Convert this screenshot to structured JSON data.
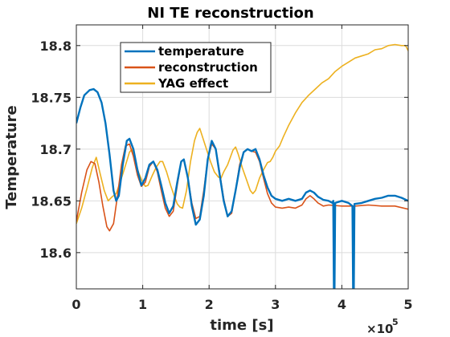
{
  "chart_data": {
    "type": "line",
    "title": "NI TE reconstruction",
    "xlabel": "time [s]",
    "ylabel": "Temperature",
    "x_multiplier": {
      "base": "×10",
      "exponent": "5"
    },
    "xlim": [
      0,
      500000
    ],
    "ylim": [
      18.565,
      18.82
    ],
    "x_ticks": [
      0,
      100000,
      200000,
      300000,
      400000,
      500000
    ],
    "x_tick_labels": [
      "0",
      "1",
      "2",
      "3",
      "4",
      "5"
    ],
    "y_ticks": [
      18.6,
      18.65,
      18.7,
      18.75,
      18.8
    ],
    "y_tick_labels": [
      "18.6",
      "18.65",
      "18.7",
      "18.75",
      "18.8"
    ],
    "grid": true,
    "legend_position": "top-left",
    "series": [
      {
        "name": "temperature",
        "color": "#0072BD",
        "points": [
          [
            0,
            18.725
          ],
          [
            6000,
            18.74
          ],
          [
            12000,
            18.752
          ],
          [
            20000,
            18.757
          ],
          [
            26000,
            18.758
          ],
          [
            32000,
            18.755
          ],
          [
            38000,
            18.745
          ],
          [
            44000,
            18.725
          ],
          [
            50000,
            18.695
          ],
          [
            56000,
            18.66
          ],
          [
            60000,
            18.65
          ],
          [
            64000,
            18.655
          ],
          [
            70000,
            18.685
          ],
          [
            76000,
            18.708
          ],
          [
            80000,
            18.71
          ],
          [
            86000,
            18.7
          ],
          [
            92000,
            18.68
          ],
          [
            98000,
            18.665
          ],
          [
            104000,
            18.672
          ],
          [
            110000,
            18.685
          ],
          [
            116000,
            18.688
          ],
          [
            122000,
            18.68
          ],
          [
            128000,
            18.665
          ],
          [
            134000,
            18.648
          ],
          [
            140000,
            18.638
          ],
          [
            146000,
            18.645
          ],
          [
            152000,
            18.668
          ],
          [
            158000,
            18.688
          ],
          [
            162000,
            18.69
          ],
          [
            168000,
            18.672
          ],
          [
            174000,
            18.645
          ],
          [
            180000,
            18.627
          ],
          [
            186000,
            18.632
          ],
          [
            192000,
            18.655
          ],
          [
            198000,
            18.69
          ],
          [
            204000,
            18.708
          ],
          [
            210000,
            18.7
          ],
          [
            216000,
            18.675
          ],
          [
            222000,
            18.65
          ],
          [
            228000,
            18.635
          ],
          [
            234000,
            18.64
          ],
          [
            240000,
            18.66
          ],
          [
            246000,
            18.682
          ],
          [
            252000,
            18.697
          ],
          [
            258000,
            18.7
          ],
          [
            264000,
            18.698
          ],
          [
            270000,
            18.7
          ],
          [
            276000,
            18.69
          ],
          [
            282000,
            18.675
          ],
          [
            288000,
            18.663
          ],
          [
            294000,
            18.655
          ],
          [
            300000,
            18.652
          ],
          [
            310000,
            18.65
          ],
          [
            320000,
            18.652
          ],
          [
            330000,
            18.65
          ],
          [
            340000,
            18.652
          ],
          [
            346000,
            18.658
          ],
          [
            352000,
            18.66
          ],
          [
            358000,
            18.658
          ],
          [
            364000,
            18.654
          ],
          [
            372000,
            18.651
          ],
          [
            380000,
            18.65
          ],
          [
            386000,
            18.648
          ],
          [
            387000,
            18.65
          ],
          [
            388000,
            18.565
          ],
          [
            389000,
            18.565
          ],
          [
            390000,
            18.648
          ],
          [
            400000,
            18.65
          ],
          [
            410000,
            18.648
          ],
          [
            416000,
            18.645
          ],
          [
            417000,
            18.565
          ],
          [
            418000,
            18.565
          ],
          [
            419000,
            18.647
          ],
          [
            430000,
            18.648
          ],
          [
            440000,
            18.65
          ],
          [
            450000,
            18.652
          ],
          [
            460000,
            18.653
          ],
          [
            470000,
            18.655
          ],
          [
            480000,
            18.655
          ],
          [
            490000,
            18.653
          ],
          [
            500000,
            18.65
          ]
        ]
      },
      {
        "name": "reconstruction",
        "color": "#D95319",
        "points": [
          [
            0,
            18.63
          ],
          [
            8000,
            18.658
          ],
          [
            16000,
            18.68
          ],
          [
            22000,
            18.688
          ],
          [
            28000,
            18.686
          ],
          [
            34000,
            18.668
          ],
          [
            40000,
            18.645
          ],
          [
            46000,
            18.625
          ],
          [
            50000,
            18.621
          ],
          [
            56000,
            18.628
          ],
          [
            62000,
            18.655
          ],
          [
            68000,
            18.685
          ],
          [
            74000,
            18.703
          ],
          [
            80000,
            18.705
          ],
          [
            86000,
            18.693
          ],
          [
            92000,
            18.675
          ],
          [
            98000,
            18.664
          ],
          [
            104000,
            18.668
          ],
          [
            110000,
            18.683
          ],
          [
            116000,
            18.688
          ],
          [
            122000,
            18.678
          ],
          [
            128000,
            18.66
          ],
          [
            134000,
            18.643
          ],
          [
            140000,
            18.635
          ],
          [
            146000,
            18.64
          ],
          [
            152000,
            18.665
          ],
          [
            158000,
            18.688
          ],
          [
            162000,
            18.69
          ],
          [
            168000,
            18.672
          ],
          [
            174000,
            18.648
          ],
          [
            180000,
            18.633
          ],
          [
            186000,
            18.635
          ],
          [
            192000,
            18.66
          ],
          [
            198000,
            18.69
          ],
          [
            204000,
            18.705
          ],
          [
            210000,
            18.7
          ],
          [
            216000,
            18.677
          ],
          [
            222000,
            18.652
          ],
          [
            228000,
            18.635
          ],
          [
            234000,
            18.638
          ],
          [
            240000,
            18.66
          ],
          [
            246000,
            18.685
          ],
          [
            252000,
            18.697
          ],
          [
            258000,
            18.7
          ],
          [
            264000,
            18.698
          ],
          [
            270000,
            18.697
          ],
          [
            276000,
            18.688
          ],
          [
            282000,
            18.672
          ],
          [
            288000,
            18.657
          ],
          [
            294000,
            18.648
          ],
          [
            300000,
            18.644
          ],
          [
            310000,
            18.643
          ],
          [
            320000,
            18.644
          ],
          [
            330000,
            18.643
          ],
          [
            340000,
            18.646
          ],
          [
            346000,
            18.652
          ],
          [
            352000,
            18.655
          ],
          [
            358000,
            18.652
          ],
          [
            364000,
            18.648
          ],
          [
            372000,
            18.645
          ],
          [
            380000,
            18.646
          ],
          [
            400000,
            18.645
          ],
          [
            420000,
            18.645
          ],
          [
            440000,
            18.646
          ],
          [
            460000,
            18.645
          ],
          [
            480000,
            18.645
          ],
          [
            500000,
            18.642
          ]
        ]
      },
      {
        "name": "YAG effect",
        "color": "#EDB120",
        "points": [
          [
            0,
            18.628
          ],
          [
            8000,
            18.643
          ],
          [
            16000,
            18.662
          ],
          [
            24000,
            18.682
          ],
          [
            30000,
            18.692
          ],
          [
            36000,
            18.676
          ],
          [
            42000,
            18.66
          ],
          [
            48000,
            18.65
          ],
          [
            54000,
            18.654
          ],
          [
            60000,
            18.657
          ],
          [
            66000,
            18.668
          ],
          [
            72000,
            18.68
          ],
          [
            80000,
            18.697
          ],
          [
            84000,
            18.7
          ],
          [
            88000,
            18.69
          ],
          [
            94000,
            18.677
          ],
          [
            100000,
            18.668
          ],
          [
            104000,
            18.664
          ],
          [
            108000,
            18.665
          ],
          [
            114000,
            18.674
          ],
          [
            120000,
            18.682
          ],
          [
            126000,
            18.688
          ],
          [
            130000,
            18.688
          ],
          [
            136000,
            18.678
          ],
          [
            142000,
            18.665
          ],
          [
            148000,
            18.654
          ],
          [
            152000,
            18.647
          ],
          [
            156000,
            18.644
          ],
          [
            160000,
            18.643
          ],
          [
            166000,
            18.66
          ],
          [
            172000,
            18.688
          ],
          [
            178000,
            18.708
          ],
          [
            182000,
            18.716
          ],
          [
            186000,
            18.72
          ],
          [
            190000,
            18.712
          ],
          [
            196000,
            18.7
          ],
          [
            202000,
            18.688
          ],
          [
            208000,
            18.678
          ],
          [
            214000,
            18.673
          ],
          [
            218000,
            18.672
          ],
          [
            222000,
            18.678
          ],
          [
            228000,
            18.685
          ],
          [
            236000,
            18.699
          ],
          [
            240000,
            18.702
          ],
          [
            244000,
            18.695
          ],
          [
            250000,
            18.682
          ],
          [
            256000,
            18.671
          ],
          [
            262000,
            18.66
          ],
          [
            266000,
            18.657
          ],
          [
            270000,
            18.66
          ],
          [
            276000,
            18.672
          ],
          [
            282000,
            18.68
          ],
          [
            288000,
            18.687
          ],
          [
            292000,
            18.688
          ],
          [
            296000,
            18.692
          ],
          [
            300000,
            18.698
          ],
          [
            306000,
            18.703
          ],
          [
            312000,
            18.712
          ],
          [
            320000,
            18.723
          ],
          [
            330000,
            18.735
          ],
          [
            340000,
            18.745
          ],
          [
            350000,
            18.752
          ],
          [
            360000,
            18.758
          ],
          [
            370000,
            18.764
          ],
          [
            380000,
            18.768
          ],
          [
            390000,
            18.775
          ],
          [
            400000,
            18.78
          ],
          [
            410000,
            18.784
          ],
          [
            420000,
            18.788
          ],
          [
            430000,
            18.79
          ],
          [
            440000,
            18.792
          ],
          [
            450000,
            18.796
          ],
          [
            460000,
            18.797
          ],
          [
            470000,
            18.8
          ],
          [
            480000,
            18.801
          ],
          [
            490000,
            18.8
          ],
          [
            496000,
            18.8
          ],
          [
            500000,
            18.795
          ]
        ]
      }
    ]
  }
}
